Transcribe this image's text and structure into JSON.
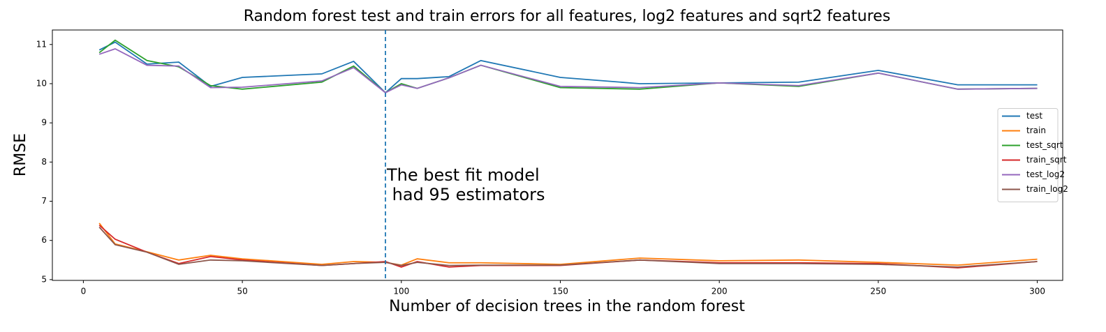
{
  "chart_data": {
    "type": "line",
    "title": "Random forest test and train errors for all features, log2 features and sqrt2 features",
    "xlabel": "Number of decision trees in the random forest",
    "ylabel": "RMSE",
    "x": [
      5,
      10,
      20,
      30,
      40,
      50,
      75,
      85,
      95,
      100,
      105,
      115,
      125,
      150,
      175,
      200,
      225,
      250,
      275,
      300
    ],
    "series": [
      {
        "name": "test",
        "color": "#1f77b4",
        "values": [
          10.86,
          11.06,
          10.5,
          10.55,
          9.93,
          10.16,
          10.25,
          10.57,
          9.77,
          10.13,
          10.13,
          10.18,
          10.59,
          10.16,
          10.0,
          10.02,
          10.04,
          10.34,
          9.97,
          9.97
        ]
      },
      {
        "name": "train",
        "color": "#ff7f0e",
        "values": [
          6.44,
          5.91,
          5.71,
          5.5,
          5.62,
          5.53,
          5.39,
          5.46,
          5.44,
          5.37,
          5.53,
          5.43,
          5.43,
          5.39,
          5.55,
          5.48,
          5.5,
          5.44,
          5.37,
          5.52
        ]
      },
      {
        "name": "test_sqrt",
        "color": "#2ca02c",
        "values": [
          10.79,
          11.11,
          10.59,
          10.43,
          9.95,
          9.86,
          10.04,
          10.45,
          9.77,
          10.0,
          9.88,
          10.15,
          10.47,
          9.9,
          9.86,
          10.02,
          9.93,
          10.27,
          9.86,
          9.88
        ]
      },
      {
        "name": "train_sqrt",
        "color": "#d62728",
        "values": [
          6.39,
          6.03,
          5.7,
          5.41,
          5.59,
          5.5,
          5.36,
          5.41,
          5.46,
          5.32,
          5.46,
          5.32,
          5.36,
          5.36,
          5.5,
          5.43,
          5.43,
          5.41,
          5.3,
          5.46
        ]
      },
      {
        "name": "test_log2",
        "color": "#9467bd",
        "values": [
          10.75,
          10.89,
          10.47,
          10.45,
          9.9,
          9.91,
          10.07,
          10.41,
          9.77,
          9.97,
          9.88,
          10.15,
          10.47,
          9.93,
          9.9,
          10.02,
          9.95,
          10.27,
          9.86,
          9.88
        ]
      },
      {
        "name": "train_log2",
        "color": "#8c564b",
        "values": [
          6.34,
          5.89,
          5.7,
          5.39,
          5.5,
          5.48,
          5.36,
          5.41,
          5.44,
          5.36,
          5.44,
          5.36,
          5.37,
          5.37,
          5.5,
          5.41,
          5.41,
          5.39,
          5.32,
          5.46
        ]
      }
    ],
    "vline": {
      "x": 95,
      "color": "#1f77b4",
      "dashed": true
    },
    "annotation": [
      "The best fit model",
      " had 95 estimators"
    ],
    "xlim": [
      -9.75,
      308
    ],
    "xticks": [
      0,
      50,
      100,
      150,
      200,
      250,
      300
    ],
    "ylim": [
      4.98,
      11.37
    ],
    "yticks": [
      5,
      6,
      7,
      8,
      9,
      10,
      11
    ],
    "grid": false,
    "legend": "center right"
  }
}
